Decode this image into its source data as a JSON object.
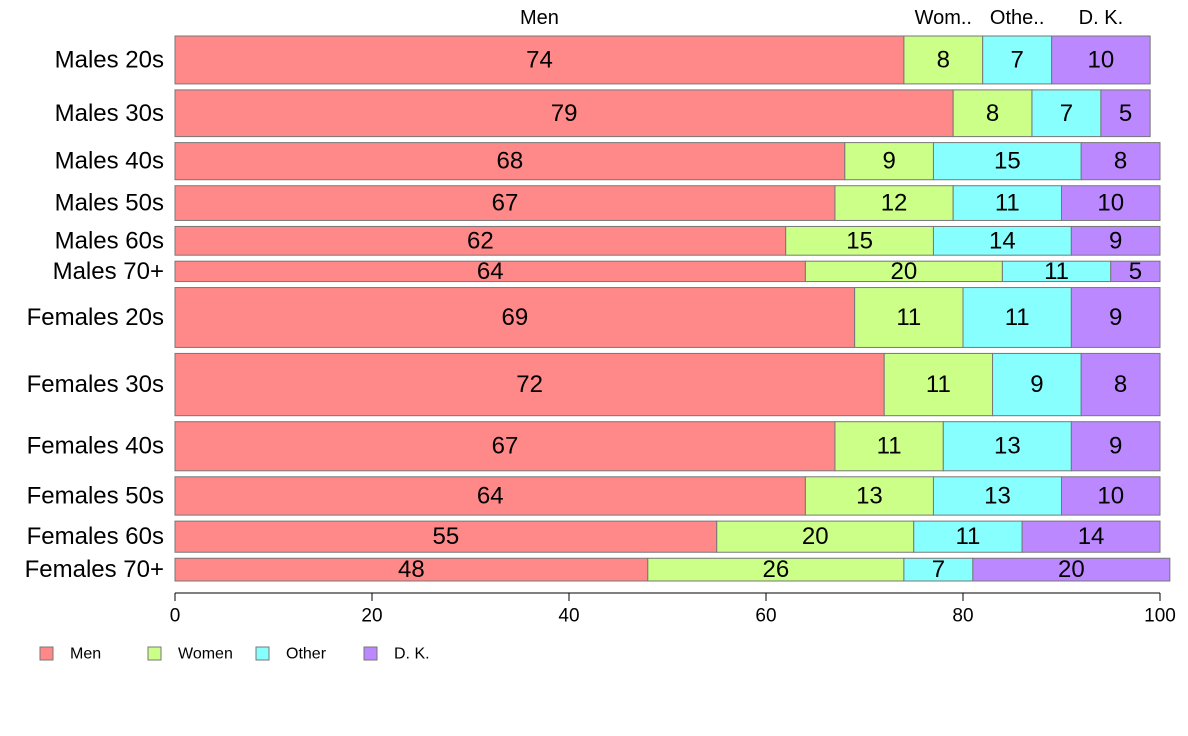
{
  "chart_data": {
    "type": "bar",
    "orientation": "horizontal",
    "stacked": true,
    "categories": [
      "Males 20s",
      "Males 30s",
      "Males 40s",
      "Males 50s",
      "Males 60s",
      "Males 70+",
      "Females 20s",
      "Females 30s",
      "Females 40s",
      "Females 50s",
      "Females 60s",
      "Females 70+"
    ],
    "category_weights": [
      2.0,
      1.95,
      1.55,
      1.45,
      1.2,
      0.85,
      2.5,
      2.6,
      2.05,
      1.6,
      1.3,
      0.95
    ],
    "series": [
      {
        "name": "Men",
        "color": "#FF8888",
        "values": [
          74,
          79,
          68,
          67,
          62,
          64,
          69,
          72,
          67,
          64,
          55,
          48
        ]
      },
      {
        "name": "Women",
        "color": "#CCFF88",
        "values": [
          8,
          8,
          9,
          12,
          15,
          20,
          11,
          11,
          11,
          13,
          20,
          26
        ]
      },
      {
        "name": "Other",
        "color": "#88FFFF",
        "values": [
          7,
          7,
          15,
          11,
          14,
          11,
          11,
          9,
          13,
          13,
          11,
          7
        ]
      },
      {
        "name": "D. K.",
        "color": "#BB88FF",
        "values": [
          10,
          5,
          8,
          10,
          9,
          5,
          9,
          8,
          9,
          10,
          14,
          20
        ]
      }
    ],
    "top_labels": [
      "Men",
      "Wom..",
      "Othe..",
      "D. K."
    ],
    "xlim": [
      0,
      100
    ],
    "xticks": [
      0,
      20,
      40,
      60,
      80,
      100
    ],
    "grid": false,
    "legend_position": "bottom-left",
    "legend": [
      "Men",
      "Women",
      "Other",
      "D. K."
    ],
    "bar_edge_color": "#777777"
  }
}
